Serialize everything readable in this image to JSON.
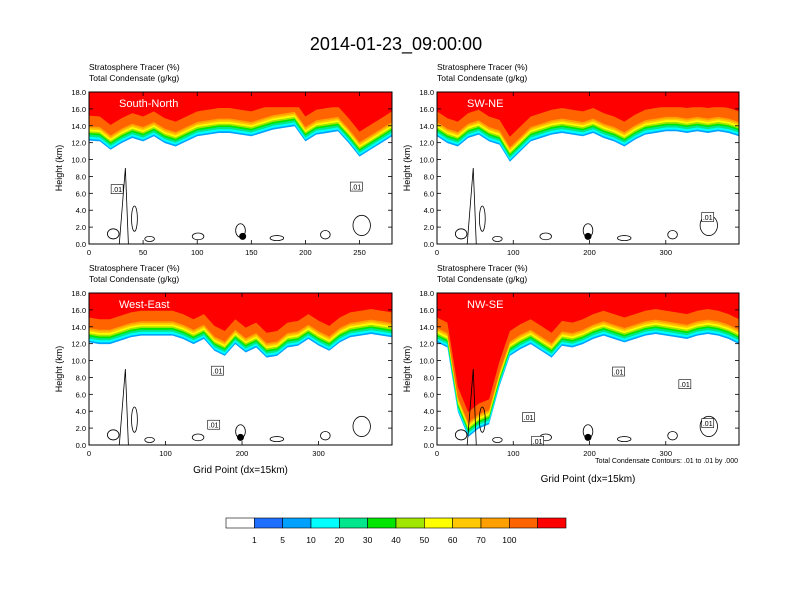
{
  "figure_title": "2014-01-23_09:00:00",
  "contour_note": "Total Condensate Contours: .01 to .01 by .000",
  "colorbar": {
    "colors": [
      "#ffffff",
      "#1e6eff",
      "#00a0ff",
      "#00ffff",
      "#00e68c",
      "#00e600",
      "#a0e600",
      "#ffff00",
      "#ffc800",
      "#ffa000",
      "#ff6400",
      "#ff0000"
    ],
    "labels": [
      "1",
      "5",
      "10",
      "20",
      "30",
      "40",
      "50",
      "60",
      "70",
      "100"
    ]
  },
  "chart_data": [
    {
      "type": "heatmap",
      "name": "South-North",
      "label_left_1": "Stratosphere Tracer   (%)",
      "label_left_2": "Total Condensate   (g/kg)",
      "ylabel": "Height (km)",
      "xlabel": "",
      "xlim": [
        0,
        280
      ],
      "ylim": [
        0,
        18
      ],
      "xticks": [
        "0",
        "50",
        "100",
        "150",
        "200",
        "250"
      ],
      "xtick_values": [
        0,
        50,
        100,
        150,
        200,
        250
      ],
      "yticks": [
        "0.0",
        "2.0",
        "4.0",
        "6.0",
        "8.0",
        "10.0",
        "12.0",
        "14.0",
        "16.0",
        "18.0"
      ],
      "contour_labels": [
        {
          "text": ".01",
          "x": 26,
          "y": 6.5
        },
        {
          "text": ".01",
          "x": 247,
          "y": 6.8
        }
      ],
      "marker": {
        "x": 142,
        "y": 0.9
      },
      "tracer_base": [
        14.3,
        14.2,
        13.2,
        14.0,
        14.6,
        14.2,
        14.8,
        14.0,
        13.6,
        14.2,
        14.8,
        15.0,
        15.2,
        15.2,
        15.0,
        14.8,
        15.2,
        15.6,
        15.8,
        16.0,
        14.2,
        15.0,
        15.2,
        15.4,
        14.0,
        12.4,
        13.2,
        14.0,
        14.8
      ]
    },
    {
      "type": "heatmap",
      "name": "SW-NE",
      "label_left_1": "Stratosphere Tracer   (%)",
      "label_left_2": "Total Condensate   (g/kg)",
      "ylabel": "Height (km)",
      "xlabel": "",
      "xlim": [
        0,
        396
      ],
      "ylim": [
        0,
        18
      ],
      "xticks": [
        "0",
        "100",
        "200",
        "300"
      ],
      "xtick_values": [
        0,
        100,
        200,
        300
      ],
      "yticks": [
        "0.0",
        "2.0",
        "4.0",
        "6.0",
        "8.0",
        "10.0",
        "12.0",
        "14.0",
        "16.0",
        "18.0"
      ],
      "contour_labels": [
        {
          "text": ".01",
          "x": 355,
          "y": 3.2
        }
      ],
      "marker": {
        "x": 198,
        "y": 0.9
      },
      "tracer_base": [
        14.8,
        14.0,
        13.6,
        14.6,
        15.0,
        14.2,
        13.8,
        11.8,
        13.0,
        14.2,
        14.6,
        15.0,
        15.2,
        15.0,
        14.8,
        15.2,
        14.6,
        14.2,
        13.6,
        14.4,
        15.0,
        15.2,
        15.4,
        15.4,
        15.2,
        15.4,
        15.2,
        15.4,
        15.2,
        14.8
      ]
    },
    {
      "type": "heatmap",
      "name": "West-East",
      "label_left_1": "Stratosphere Tracer   (%)",
      "label_left_2": "Total Condensate   (g/kg)",
      "ylabel": "Height (km)",
      "xlabel": "Grid Point (dx=15km)",
      "xlim": [
        0,
        396
      ],
      "ylim": [
        0,
        18
      ],
      "xticks": [
        "0",
        "100",
        "200",
        "300"
      ],
      "xtick_values": [
        0,
        100,
        200,
        300
      ],
      "yticks": [
        "0.0",
        "2.0",
        "4.0",
        "6.0",
        "8.0",
        "10.0",
        "12.0",
        "14.0",
        "16.0",
        "18.0"
      ],
      "contour_labels": [
        {
          "text": ".01",
          "x": 168,
          "y": 8.8
        },
        {
          "text": ".01",
          "x": 163,
          "y": 2.4
        }
      ],
      "marker": {
        "x": 198,
        "y": 0.9
      },
      "tracer_base": [
        14.2,
        14.0,
        14.0,
        14.4,
        14.8,
        15.0,
        15.0,
        15.0,
        15.0,
        14.6,
        14.0,
        14.6,
        13.2,
        12.6,
        14.0,
        13.0,
        13.6,
        12.4,
        12.6,
        13.6,
        13.8,
        14.6,
        13.8,
        13.2,
        14.2,
        14.8,
        15.0,
        15.2,
        15.0,
        14.8
      ]
    },
    {
      "type": "heatmap",
      "name": "NW-SE",
      "label_left_1": "Stratosphere Tracer   (%)",
      "label_left_2": "Total Condensate   (g/kg)",
      "ylabel": "Height (km)",
      "xlabel": "Grid Point (dx=15km)",
      "xlim": [
        0,
        396
      ],
      "ylim": [
        0,
        18
      ],
      "xticks": [
        "0",
        "100",
        "200",
        "300"
      ],
      "xtick_values": [
        0,
        100,
        200,
        300
      ],
      "yticks": [
        "0.0",
        "2.0",
        "4.0",
        "6.0",
        "8.0",
        "10.0",
        "12.0",
        "14.0",
        "16.0",
        "18.0"
      ],
      "contour_labels": [
        {
          "text": ".01",
          "x": 238,
          "y": 8.7
        },
        {
          "text": ".01",
          "x": 325,
          "y": 7.2
        },
        {
          "text": ".01",
          "x": 120,
          "y": 3.3
        },
        {
          "text": ".01",
          "x": 355,
          "y": 2.6
        },
        {
          "text": ".01",
          "x": 132,
          "y": 0.5
        }
      ],
      "marker": {
        "x": 198,
        "y": 0.9
      },
      "tracer_base": [
        14.2,
        13.6,
        6.0,
        3.0,
        4.0,
        4.5,
        9.0,
        12.6,
        13.4,
        14.0,
        13.2,
        12.4,
        13.8,
        13.6,
        14.0,
        14.6,
        15.0,
        14.6,
        14.2,
        14.6,
        15.0,
        15.2,
        15.0,
        14.8,
        14.6,
        15.0,
        15.2,
        15.0,
        14.6,
        14.0
      ]
    }
  ]
}
